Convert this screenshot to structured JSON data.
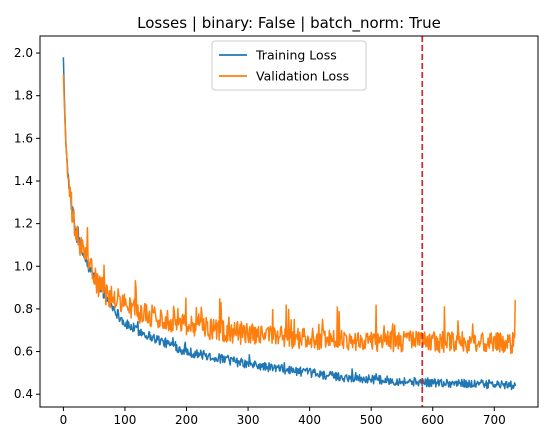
{
  "chart_data": {
    "type": "line",
    "title": "Losses | binary: False | batch_norm: True",
    "xlabel": "",
    "ylabel": "",
    "xlim": [
      -38,
      771
    ],
    "ylim": [
      0.34,
      2.08
    ],
    "x_ticks": [
      0,
      100,
      200,
      300,
      400,
      500,
      600,
      700
    ],
    "y_ticks": [
      0.4,
      0.6,
      0.8,
      1.0,
      1.2,
      1.4,
      1.6,
      1.8,
      2.0
    ],
    "y_tick_labels": [
      "0.4",
      "0.6",
      "0.8",
      "1.0",
      "1.2",
      "1.4",
      "1.6",
      "1.8",
      "2.0"
    ],
    "x_max_epoch": 735,
    "legend_position": "upper-center",
    "vline": {
      "x": 583,
      "color": "#d62728",
      "style": "dashed"
    },
    "series": [
      {
        "name": "Training Loss",
        "color": "#1f77b4",
        "noise": 0.014,
        "keypoints": [
          [
            0,
            1.98
          ],
          [
            2,
            1.75
          ],
          [
            4,
            1.58
          ],
          [
            7,
            1.45
          ],
          [
            10,
            1.36
          ],
          [
            15,
            1.25
          ],
          [
            20,
            1.16
          ],
          [
            30,
            1.07
          ],
          [
            40,
            1.0
          ],
          [
            50,
            0.95
          ],
          [
            60,
            0.9
          ],
          [
            75,
            0.83
          ],
          [
            90,
            0.77
          ],
          [
            100,
            0.73
          ],
          [
            120,
            0.7
          ],
          [
            150,
            0.66
          ],
          [
            200,
            0.6
          ],
          [
            250,
            0.57
          ],
          [
            300,
            0.54
          ],
          [
            350,
            0.52
          ],
          [
            400,
            0.5
          ],
          [
            450,
            0.48
          ],
          [
            500,
            0.47
          ],
          [
            550,
            0.46
          ],
          [
            600,
            0.455
          ],
          [
            650,
            0.45
          ],
          [
            700,
            0.445
          ],
          [
            735,
            0.44
          ]
        ]
      },
      {
        "name": "Validation Loss",
        "color": "#ff7f0e",
        "noise": 0.03,
        "keypoints": [
          [
            0,
            1.9
          ],
          [
            2,
            1.72
          ],
          [
            4,
            1.58
          ],
          [
            7,
            1.44
          ],
          [
            10,
            1.34
          ],
          [
            15,
            1.24
          ],
          [
            20,
            1.15
          ],
          [
            30,
            1.08
          ],
          [
            40,
            1.01
          ],
          [
            50,
            0.95
          ],
          [
            60,
            0.9
          ],
          [
            75,
            0.86
          ],
          [
            90,
            0.84
          ],
          [
            100,
            0.82
          ],
          [
            120,
            0.79
          ],
          [
            150,
            0.76
          ],
          [
            200,
            0.73
          ],
          [
            250,
            0.7
          ],
          [
            300,
            0.68
          ],
          [
            350,
            0.67
          ],
          [
            400,
            0.66
          ],
          [
            450,
            0.655
          ],
          [
            500,
            0.65
          ],
          [
            550,
            0.648
          ],
          [
            600,
            0.645
          ],
          [
            650,
            0.643
          ],
          [
            700,
            0.64
          ],
          [
            733,
            0.64
          ],
          [
            735,
            0.84
          ]
        ]
      }
    ]
  }
}
